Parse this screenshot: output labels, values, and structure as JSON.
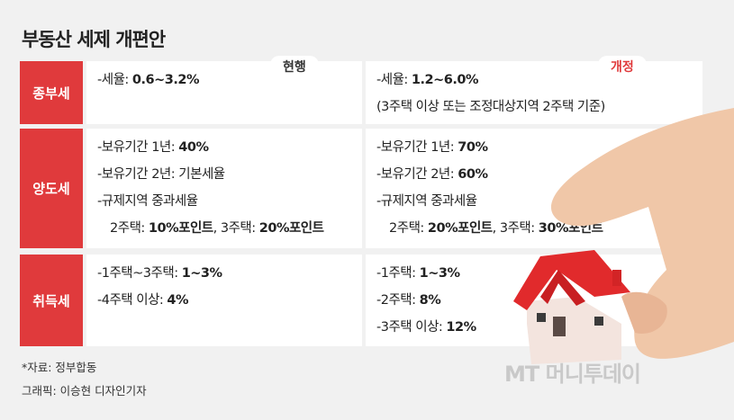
{
  "title": "부동산 세제 개편안",
  "columns": {
    "current": "현행",
    "revised": "개정"
  },
  "rows": [
    {
      "label": "종부세",
      "current": [
        [
          "-세율: ",
          "0.6~3.2%"
        ]
      ],
      "revised": [
        [
          "-세율: ",
          "1.2~6.0%"
        ],
        [
          "(3주택 이상 또는 조정대상지역 2주택 기준)"
        ]
      ]
    },
    {
      "label": "양도세",
      "current": [
        [
          "-보유기간 1년: ",
          "40%"
        ],
        [
          "-보유기간 2년: 기본세율"
        ],
        [
          "-규제지역 중과세율"
        ],
        [
          "2주택: ",
          "10%포인트",
          ", 3주택: ",
          "20%포인트"
        ]
      ],
      "revised": [
        [
          "-보유기간 1년: ",
          "70%"
        ],
        [
          "-보유기간 2년: ",
          "60%"
        ],
        [
          "-규제지역 중과세율"
        ],
        [
          "2주택: ",
          "20%포인트",
          ", 3주택: ",
          "30%포인트"
        ]
      ]
    },
    {
      "label": "취득세",
      "current": [
        [
          "-1주택~3주택: ",
          "1~3%"
        ],
        [
          "-4주택 이상: ",
          "4%"
        ]
      ],
      "revised": [
        [
          "-1주택: ",
          "1~3%"
        ],
        [
          "-2주택: ",
          "8%"
        ],
        [
          "-3주택 이상: ",
          "12%"
        ]
      ]
    }
  ],
  "source": "*자료: 정부합동",
  "credit": "그래픽: 이승현 디자인기자",
  "watermark": "MT 머니투데이"
}
